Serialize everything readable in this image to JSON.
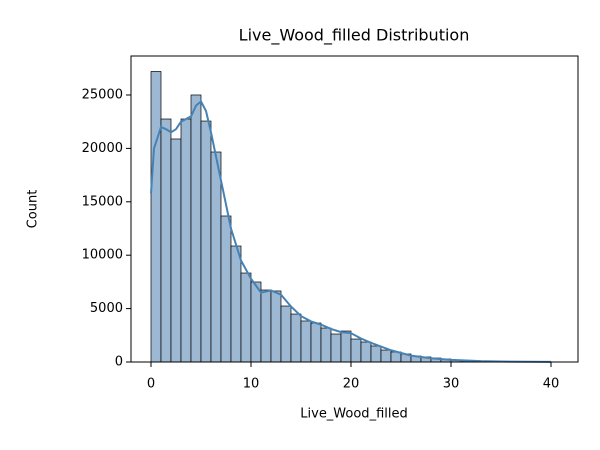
{
  "chart_data": {
    "type": "histogram",
    "title": "Live_Wood_filled Distribution",
    "x_label": "Live_Wood_filled",
    "y_label": "Count",
    "bins": [
      0,
      1,
      2,
      3,
      4,
      5,
      6,
      7,
      8,
      9,
      10,
      11,
      12,
      13,
      14,
      15,
      16,
      17,
      18,
      19,
      20,
      21,
      22,
      23,
      24,
      25,
      26,
      27,
      28,
      29,
      30,
      31,
      32,
      33,
      34,
      35,
      36,
      37,
      38,
      39,
      40
    ],
    "counts": [
      27200,
      22750,
      20880,
      22750,
      25000,
      22560,
      19660,
      13670,
      10860,
      8330,
      7490,
      6740,
      6650,
      5240,
      4490,
      3840,
      3650,
      3180,
      2620,
      2900,
      2150,
      1870,
      1500,
      1120,
      940,
      750,
      560,
      470,
      370,
      280,
      190,
      100,
      80,
      60,
      50,
      40,
      30,
      20,
      15,
      10
    ],
    "color": "#9db8d3",
    "edge_color": "#000000",
    "kde": {
      "color": "#4682b4",
      "x": [
        0,
        0.3,
        1,
        1.5,
        2,
        2.5,
        3,
        4,
        4.5,
        5,
        5.5,
        6,
        7,
        8,
        9,
        10,
        11,
        12,
        13,
        14,
        15,
        16,
        17,
        18,
        19,
        20,
        21,
        22,
        24,
        26,
        28,
        30,
        33,
        36,
        40
      ],
      "values": [
        15800,
        20000,
        22000,
        21800,
        21500,
        21800,
        22500,
        23000,
        24000,
        24400,
        23500,
        21500,
        17000,
        12500,
        9500,
        7800,
        6500,
        6700,
        6300,
        5200,
        4300,
        3800,
        3500,
        3100,
        2800,
        2700,
        2200,
        1800,
        1100,
        600,
        350,
        200,
        80,
        30,
        10
      ]
    },
    "xlim": [
      -2,
      42.7
    ],
    "ylim": [
      0,
      28650
    ],
    "xticks": [
      0,
      10,
      20,
      30,
      40
    ],
    "yticks": [
      0,
      5000,
      10000,
      15000,
      20000,
      25000
    ]
  }
}
